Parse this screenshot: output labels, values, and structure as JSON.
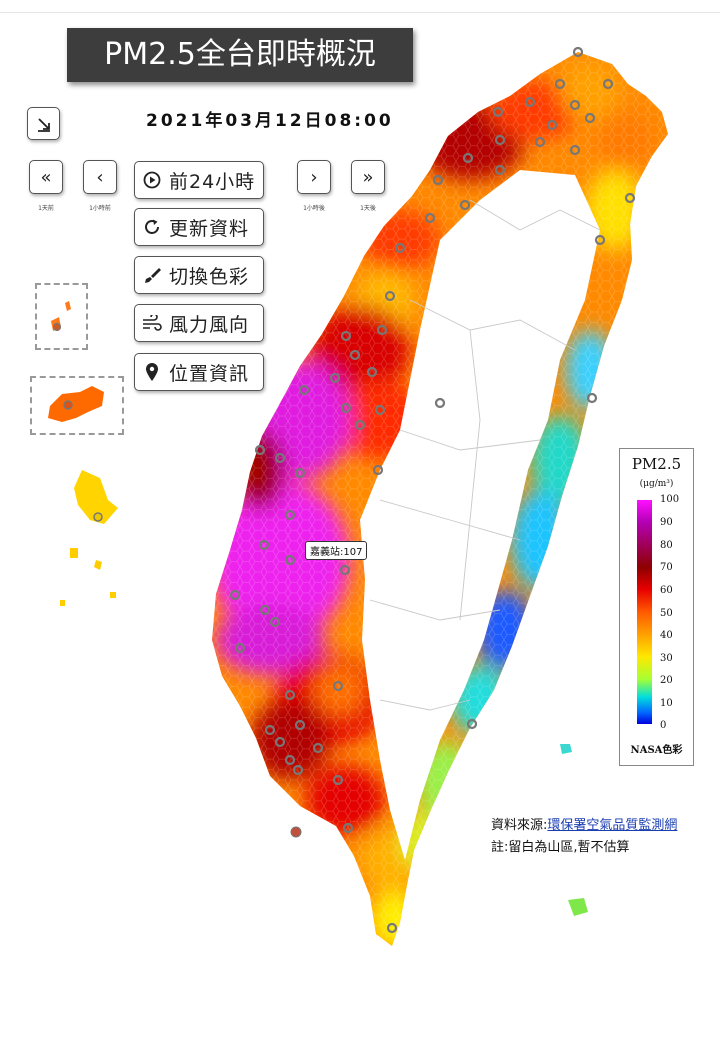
{
  "title": "PM2.5全台即時概況",
  "datetime": "2021年03月12日08:00",
  "nav": {
    "day_back_caption": "1天前",
    "hour_back_caption": "1小時前",
    "hour_fwd_caption": "1小時後",
    "day_fwd_caption": "1天後"
  },
  "buttons": {
    "prev24": "前24小時",
    "refresh": "更新資料",
    "colors": "切換色彩",
    "wind": "風力風向",
    "location": "位置資訊"
  },
  "station_label": "嘉義站:107",
  "legend": {
    "title": "PM2.5",
    "unit": "(μg/m³)",
    "ticks": [
      "100",
      "90",
      "80",
      "70",
      "60",
      "50",
      "40",
      "30",
      "20",
      "10",
      "0"
    ],
    "scheme": "NASA色彩"
  },
  "source": {
    "prefix": "資料來源:",
    "link": "環保署空氣品質監測網",
    "note": "註:留白為山區,暫不估算"
  },
  "colors": {
    "magenta": "#e61ee6",
    "darkred": "#a30000",
    "red": "#e60000",
    "orange": "#ff6a00",
    "yellow": "#ffd400",
    "cyan": "#22d6e6",
    "blue": "#1e6bff"
  }
}
